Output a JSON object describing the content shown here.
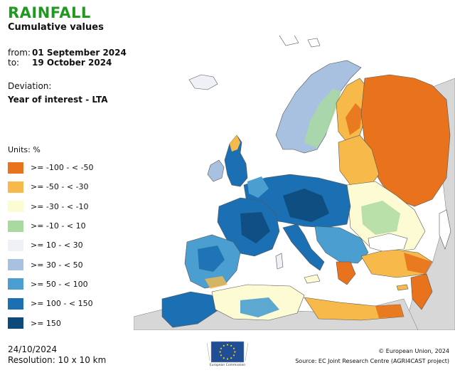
{
  "title": "RAINFALL",
  "subtitle": "Cumulative values",
  "period": {
    "from_label": "from:",
    "from_value": "01 September 2024",
    "to_label": "to:",
    "to_value": "19 October 2024"
  },
  "deviation": {
    "label": "Deviation:",
    "value": "Year of interest - LTA"
  },
  "legend": {
    "units": "Units: %",
    "items": [
      {
        "label": ">= -100 - < -50",
        "color": "#e8731c"
      },
      {
        "label": ">= -50 - < -30",
        "color": "#f6b94a"
      },
      {
        "label": ">= -30 - < -10",
        "color": "#fdfbd3"
      },
      {
        "label": ">= -10 - < 10",
        "color": "#a9d9a0"
      },
      {
        "label": ">= 10 - < 30",
        "color": "#f0f0f7"
      },
      {
        "label": ">= 30 - < 50",
        "color": "#a9c1e0"
      },
      {
        "label": ">= 50 - < 100",
        "color": "#4a9fd0"
      },
      {
        "label": ">= 100 - < 150",
        "color": "#1b6fb3"
      },
      {
        "label": ">= 150",
        "color": "#0d4a7a"
      }
    ]
  },
  "footer": {
    "date": "24/10/2024",
    "resolution": "Resolution: 10 x 10 km",
    "logo_caption": "European Commission",
    "copyright": "© European Union, 2024",
    "source": "Source: EC Joint Research Centre (AGRI4CAST project)"
  },
  "colors": {
    "title": "#1f9a1f",
    "sea": "#ffffff",
    "outside_land": "#d7d7d7",
    "eu_blue": "#1f4e96",
    "eu_star": "#f4d000"
  }
}
